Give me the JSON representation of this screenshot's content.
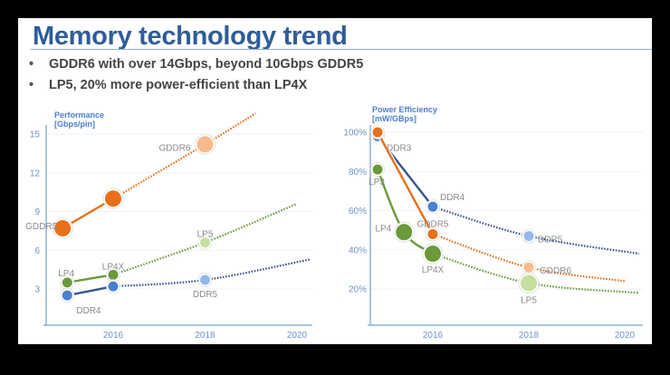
{
  "slide": {
    "title": "Memory technology trend",
    "bullets": [
      "GDDR6 with over 14Gbps, beyond 10Gbps GDDR5",
      "LP5, 20% more power-efficient than LP4X"
    ],
    "bullet_glyph": "•"
  },
  "chart_data": [
    {
      "type": "line",
      "title": "",
      "ylabel": [
        "Performance",
        "[Gbps/pin]"
      ],
      "xlabel": "",
      "xlim": [
        2014.5,
        2020.5
      ],
      "ylim": [
        0,
        16
      ],
      "xticks": [
        2016,
        2018,
        2020
      ],
      "yticks": [
        3,
        6,
        9,
        12,
        15
      ],
      "ytick_labels": [
        "3",
        "6",
        "9",
        "12",
        "15"
      ],
      "xtick_labels": [
        "2016",
        "2018",
        "2020"
      ],
      "grid": true,
      "series": [
        {
          "color": "#e8701a",
          "light": "#f9bb8d",
          "line": "#e8701a",
          "points": [
            {
              "x": 2014.9,
              "y": 7.7,
              "label": "GDDR5",
              "size": "large"
            },
            {
              "x": 2016,
              "y": 10,
              "size": "large"
            },
            {
              "x": 2018,
              "y": 14.2,
              "label": "GDDR6",
              "size": "large",
              "projected": true
            }
          ],
          "projection_end": {
            "x": 2019.1,
            "y": 16.6
          }
        },
        {
          "color": "#6a9a3a",
          "light": "#c4e09c",
          "line": "#6a9a3a",
          "points": [
            {
              "x": 2015,
              "y": 3.5,
              "label": "LP4",
              "size": "small"
            },
            {
              "x": 2016,
              "y": 4.1,
              "label": "LP4X",
              "size": "small"
            },
            {
              "x": 2018,
              "y": 6.6,
              "label": "LP5",
              "size": "small",
              "projected": true
            }
          ],
          "projection_end": {
            "x": 2020,
            "y": 9.6
          }
        },
        {
          "color": "#4a7fd0",
          "light": "#93b8ec",
          "line": "#35558f",
          "points": [
            {
              "x": 2015,
              "y": 2.5,
              "label": "DDR4",
              "size": "small"
            },
            {
              "x": 2016,
              "y": 3.2,
              "size": "small"
            },
            {
              "x": 2018,
              "y": 3.7,
              "label": "DDR5",
              "size": "small",
              "projected": true
            }
          ],
          "projection_end": {
            "x": 2020.3,
            "y": 5.3
          }
        }
      ]
    },
    {
      "type": "line",
      "title": "",
      "ylabel": [
        "Power Efficiency",
        "[mW/GBps]"
      ],
      "xlabel": "",
      "xlim": [
        2014.7,
        2020.3
      ],
      "ylim": [
        0,
        105
      ],
      "xticks": [
        2016,
        2018,
        2020
      ],
      "yticks": [
        20,
        40,
        60,
        80,
        100
      ],
      "ytick_labels": [
        "20%",
        "40%",
        "60%",
        "80%",
        "100%"
      ],
      "xtick_labels": [
        "2016",
        "2018",
        "2020"
      ],
      "grid": true,
      "series": [
        {
          "color": "#4a7fd0",
          "light": "#93b8ec",
          "line": "#35558f",
          "points": [
            {
              "x": 2014.85,
              "y": 98,
              "label": "DDR3",
              "size": "small"
            },
            {
              "x": 2016,
              "y": 62,
              "label": "DDR4",
              "size": "small"
            },
            {
              "x": 2018,
              "y": 47,
              "label": "DDR5",
              "size": "small",
              "projected": true
            }
          ],
          "projection_end": {
            "x": 2020.3,
            "y": 38
          }
        },
        {
          "color": "#e8701a",
          "light": "#f9bb8d",
          "line": "#e8701a",
          "points": [
            {
              "x": 2014.85,
              "y": 100,
              "size": "small"
            },
            {
              "x": 2016,
              "y": 48,
              "label": "GDDR5",
              "size": "small"
            },
            {
              "x": 2018,
              "y": 31,
              "label": "GDDR6",
              "size": "small",
              "projected": true
            }
          ],
          "projection_end": {
            "x": 2020,
            "y": 24
          }
        },
        {
          "color": "#6a9a3a",
          "light": "#c4e09c",
          "line": "#6a9a3a",
          "points": [
            {
              "x": 2014.85,
              "y": 81,
              "label": "LP3",
              "size": "small"
            },
            {
              "x": 2015.4,
              "y": 49,
              "label": "LP4",
              "size": "large"
            },
            {
              "x": 2016,
              "y": 38,
              "label": "LP4X",
              "size": "large"
            },
            {
              "x": 2018,
              "y": 23,
              "label": "LP5",
              "size": "large",
              "projected": true
            }
          ],
          "projection_end": {
            "x": 2020.3,
            "y": 18
          }
        }
      ]
    }
  ]
}
